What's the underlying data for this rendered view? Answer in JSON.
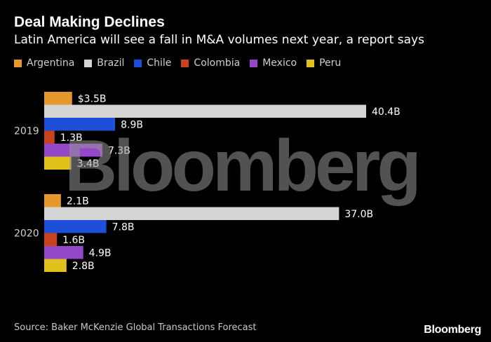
{
  "header": {
    "title": "Deal Making Declines",
    "subtitle": "Latin America will see a fall in M&A volumes next year, a report says"
  },
  "footer": {
    "source": "Source: Baker McKenzie Global Transactions Forecast",
    "logo": "Bloomberg"
  },
  "watermark": "Bloomberg",
  "colors": {
    "Argentina": "#e6982c",
    "Brazil": "#d4d4d4",
    "Chile": "#1d4fd8",
    "Colombia": "#c8431c",
    "Mexico": "#9447c9",
    "Peru": "#e2c21a",
    "background": "#000000"
  },
  "chart_data": {
    "type": "bar",
    "orientation": "horizontal",
    "title": "Deal Making Declines",
    "subtitle": "Latin America will see a fall in M&A volumes next year, a report says",
    "categories": [
      "2019",
      "2020"
    ],
    "series": [
      {
        "name": "Argentina",
        "values": [
          3.5,
          2.1
        ],
        "labels": [
          "$3.5B",
          "2.1B"
        ]
      },
      {
        "name": "Brazil",
        "values": [
          40.4,
          37.0
        ],
        "labels": [
          "40.4B",
          "37.0B"
        ]
      },
      {
        "name": "Chile",
        "values": [
          8.9,
          7.8
        ],
        "labels": [
          "8.9B",
          "7.8B"
        ]
      },
      {
        "name": "Colombia",
        "values": [
          1.3,
          1.6
        ],
        "labels": [
          "1.3B",
          "1.6B"
        ]
      },
      {
        "name": "Mexico",
        "values": [
          7.3,
          4.9
        ],
        "labels": [
          "7.3B",
          "4.9B"
        ]
      },
      {
        "name": "Peru",
        "values": [
          3.4,
          2.8
        ],
        "labels": [
          "3.4B",
          "2.8B"
        ]
      }
    ],
    "xlabel": "",
    "ylabel": "",
    "xlim": [
      0,
      40.4
    ],
    "grid": false,
    "legend": "top-left"
  }
}
